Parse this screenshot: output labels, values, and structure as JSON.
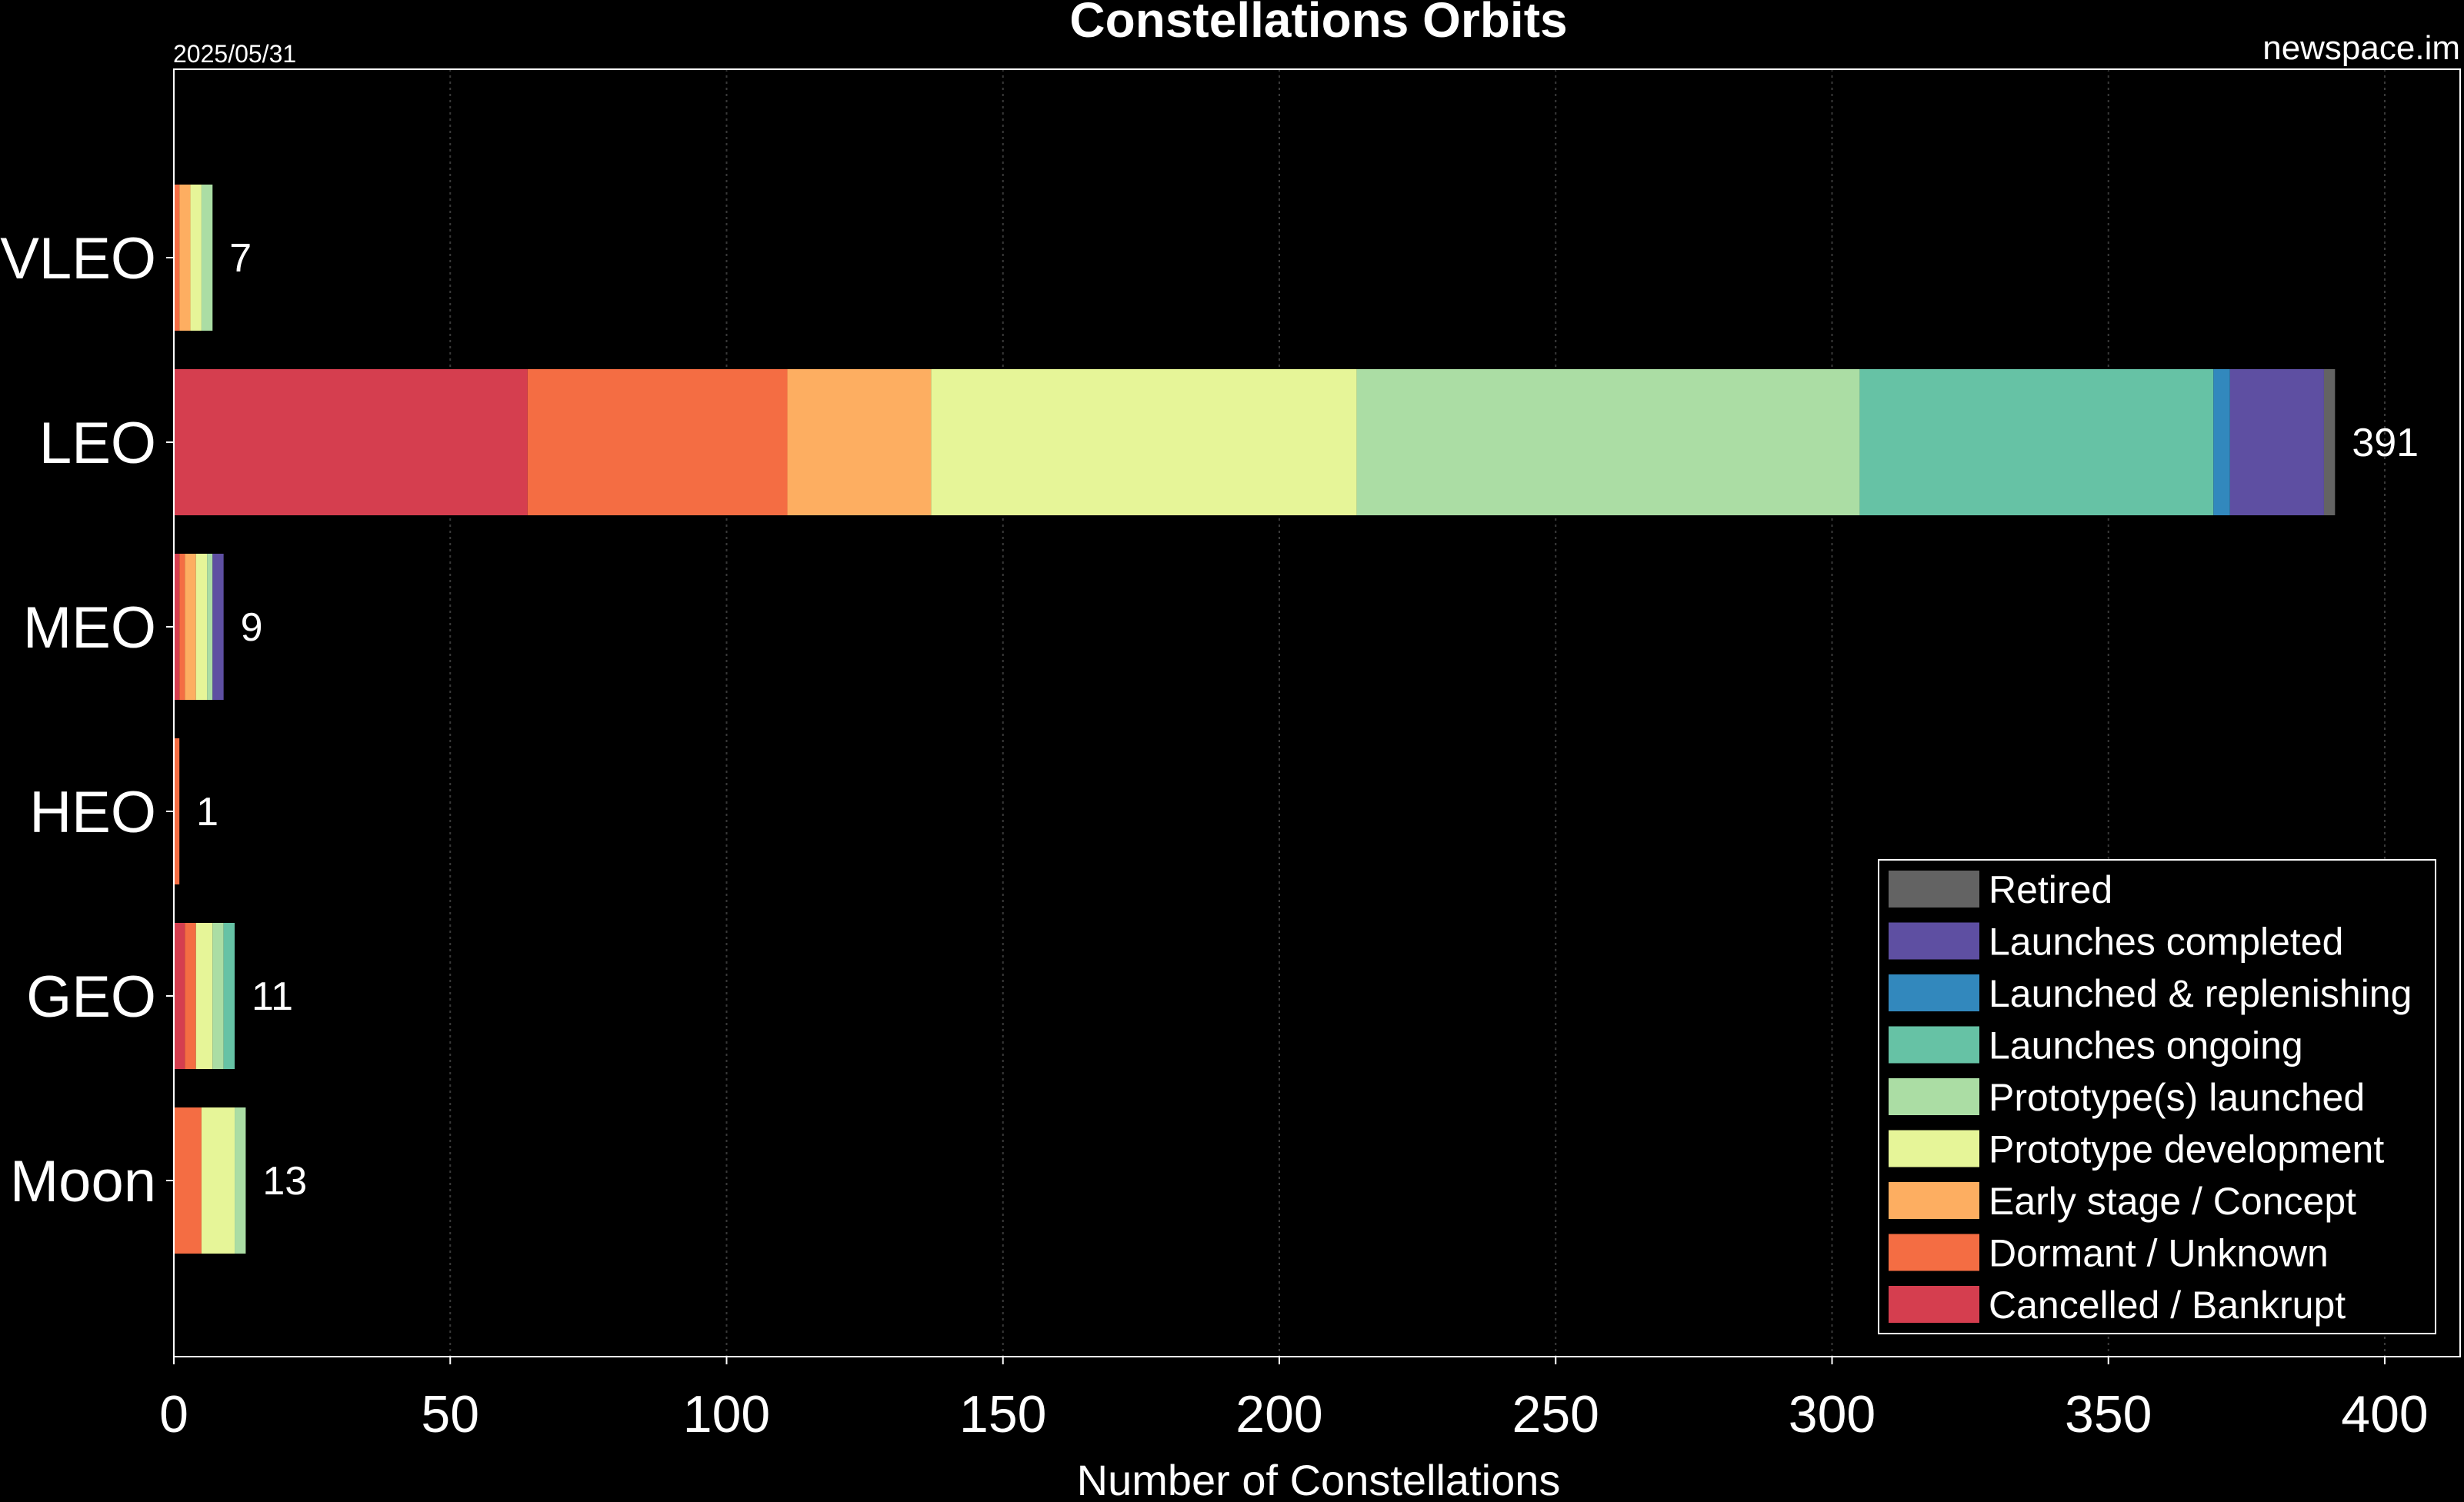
{
  "chart_data": {
    "type": "bar",
    "orientation": "horizontal",
    "stacked": true,
    "title": "Constellations Orbits",
    "date": "2025/05/31",
    "source": "newspace.im",
    "xlabel": "Number of Constellations",
    "ylabel": "",
    "xlim": [
      0,
      415
    ],
    "xticks": [
      "0",
      "50",
      "100",
      "150",
      "200",
      "250",
      "300",
      "350",
      "400"
    ],
    "grid": true,
    "legend_position": "bottom-right",
    "categories": [
      "VLEO",
      "LEO",
      "MEO",
      "HEO",
      "GEO",
      "Moon"
    ],
    "totals": [
      "7",
      "391",
      "9",
      "1",
      "11",
      "13"
    ],
    "series": [
      {
        "name": "Cancelled / Bankrupt",
        "color": "#d53e4f",
        "values": [
          0,
          64,
          1,
          0,
          2,
          0
        ]
      },
      {
        "name": "Dormant / Unknown",
        "color": "#f46d43",
        "values": [
          1,
          47,
          1,
          1,
          2,
          5
        ]
      },
      {
        "name": "Early stage / Concept",
        "color": "#fdae61",
        "values": [
          2,
          26,
          2,
          0,
          0,
          0
        ]
      },
      {
        "name": "Prototype development",
        "color": "#e6f598",
        "values": [
          2,
          77,
          2,
          0,
          3,
          6
        ]
      },
      {
        "name": "Prototype(s) launched",
        "color": "#abdda4",
        "values": [
          2,
          91,
          1,
          0,
          2,
          2
        ]
      },
      {
        "name": "Launches ongoing",
        "color": "#66c2a5",
        "values": [
          0,
          64,
          0,
          0,
          2,
          0
        ]
      },
      {
        "name": "Launched & replenishing",
        "color": "#3288bd",
        "values": [
          0,
          3,
          0,
          0,
          0,
          0
        ]
      },
      {
        "name": "Launches completed",
        "color": "#5e4fa2",
        "values": [
          0,
          17,
          2,
          0,
          0,
          0
        ]
      },
      {
        "name": "Retired",
        "color": "#636363",
        "values": [
          0,
          2,
          0,
          0,
          0,
          0
        ]
      }
    ],
    "legend_order": [
      "Retired",
      "Launches completed",
      "Launched & replenishing",
      "Launches ongoing",
      "Prototype(s) launched",
      "Prototype development",
      "Early stage / Concept",
      "Dormant / Unknown",
      "Cancelled / Bankrupt"
    ]
  }
}
